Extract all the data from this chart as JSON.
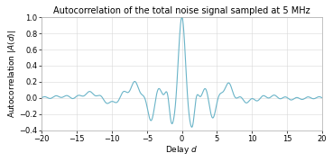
{
  "title": "Autocorrelation of the total noise signal sampled at 5 MHz",
  "xlabel": "Delay $d$",
  "ylabel": "Autocorrelation |$A(d)$|",
  "xlim": [
    -20,
    20
  ],
  "ylim": [
    -0.4,
    1.0
  ],
  "xticks": [
    -20,
    -15,
    -10,
    -5,
    0,
    5,
    10,
    15,
    20
  ],
  "yticks": [
    -0.4,
    -0.2,
    0,
    0.2,
    0.4,
    0.6,
    0.8,
    1
  ],
  "line_color": "#6ab4c8",
  "line_width": 0.8,
  "bg_color": "#ffffff",
  "title_fontsize": 7.0,
  "label_fontsize": 6.5,
  "tick_fontsize": 6.0
}
